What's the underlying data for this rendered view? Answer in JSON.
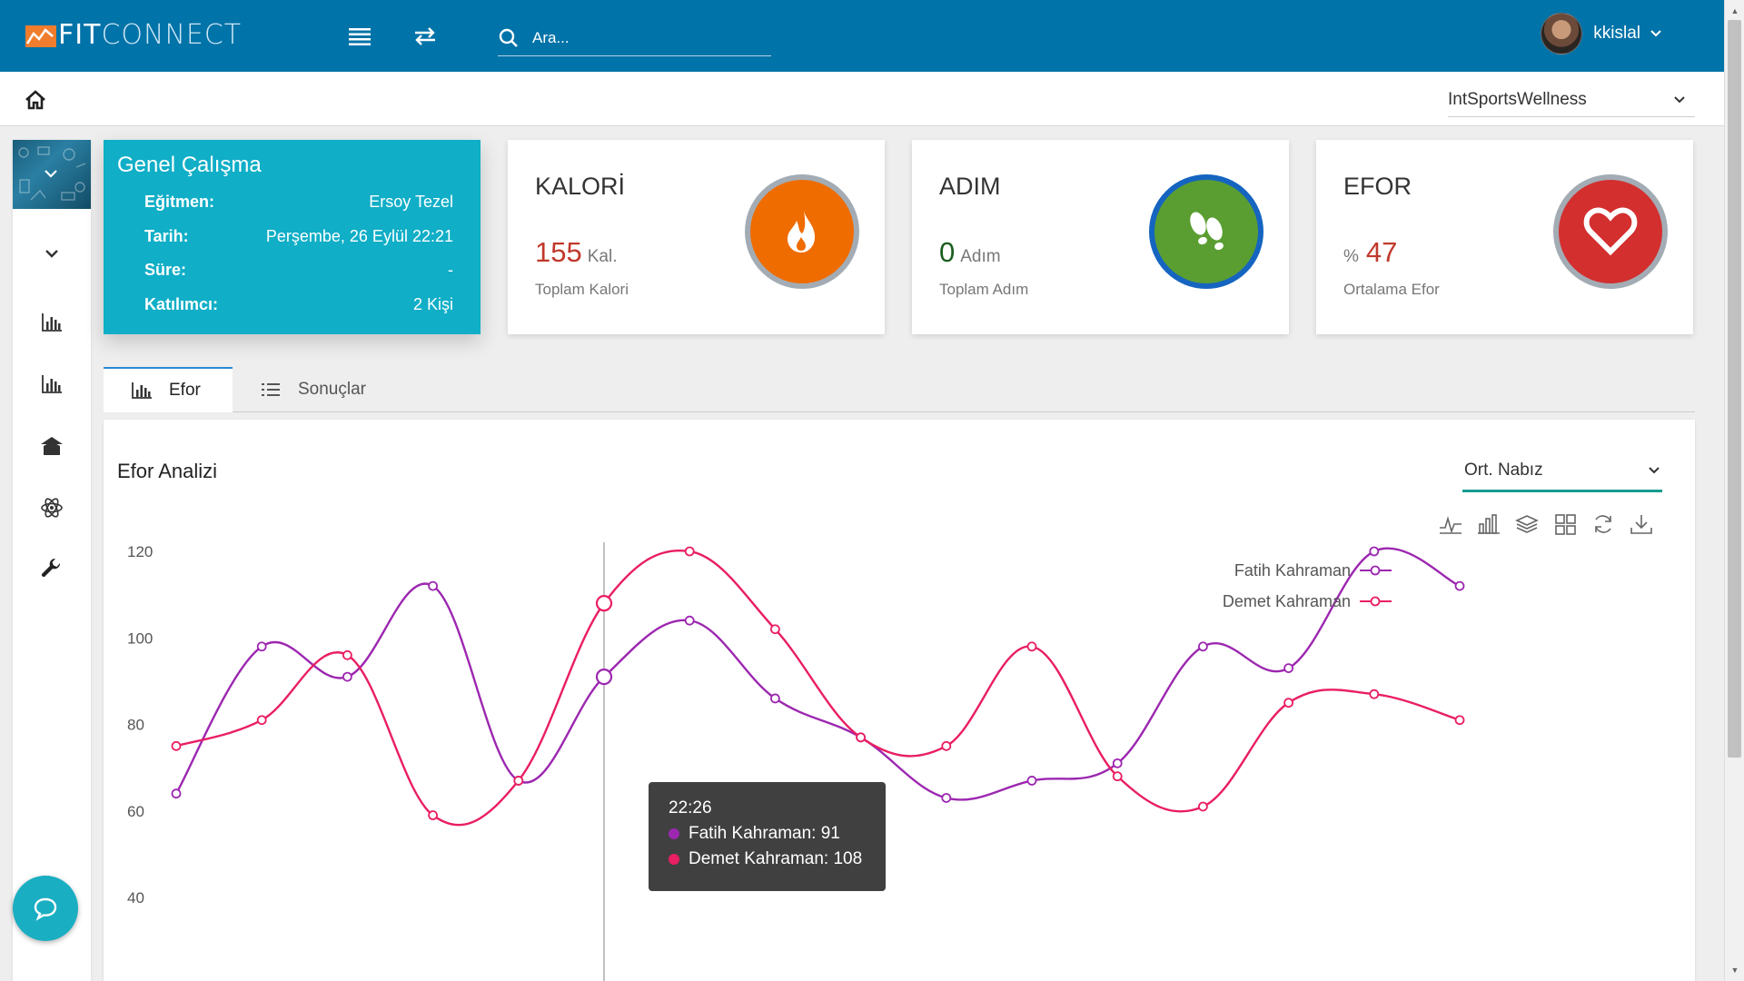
{
  "app": {
    "logo_fit": "FIT",
    "logo_connect": "CONNECT"
  },
  "header": {
    "search_placeholder": "Ara...",
    "username": "kkislal"
  },
  "subbar": {
    "organization": "IntSportsWellness"
  },
  "session": {
    "title": "Genel Çalışma",
    "rows": [
      {
        "key": "Eğitmen:",
        "value": "Ersoy Tezel"
      },
      {
        "key": "Tarih:",
        "value": "Perşembe, 26 Eylül 22:21"
      },
      {
        "key": "Süre:",
        "value": "-"
      },
      {
        "key": "Katılımcı:",
        "value": "2 Kişi"
      }
    ]
  },
  "stats": {
    "calorie": {
      "title": "KALORİ",
      "value": "155",
      "unit": "Kal.",
      "subtitle": "Toplam Kalori",
      "color": "#ef6c00"
    },
    "steps": {
      "title": "ADIM",
      "value": "0",
      "unit": "Adım",
      "subtitle": "Toplam Adım",
      "color": "#5a9e32"
    },
    "effort": {
      "title": "EFOR",
      "prefix": "%",
      "value": "47",
      "subtitle": "Ortalama Efor",
      "color": "#d32f2f"
    }
  },
  "tabs": [
    {
      "label": "Efor",
      "icon": "bar-chart-icon",
      "active": true
    },
    {
      "label": "Sonuçlar",
      "icon": "list-icon",
      "active": false
    }
  ],
  "chart_panel": {
    "title": "Efor Analizi",
    "metric_select": "Ort. Nabız",
    "toolbox": [
      "line-chart-icon",
      "bar-chart-icon",
      "stack-icon",
      "tiled-icon",
      "refresh-icon",
      "download-icon"
    ]
  },
  "chart_data": {
    "type": "line",
    "title": "Efor Analizi",
    "ylim": [
      40,
      120
    ],
    "y_ticks": [
      120,
      100,
      80,
      60,
      40
    ],
    "legend_position": "top-right",
    "series": [
      {
        "name": "Fatih Kahraman",
        "color": "#9c27b0",
        "values": [
          64,
          98,
          91,
          112,
          67,
          91,
          104,
          86,
          77,
          63,
          67,
          71,
          98,
          93,
          120,
          112
        ]
      },
      {
        "name": "Demet Kahraman",
        "color": "#e91e63",
        "values": [
          75,
          81,
          96,
          59,
          67,
          108,
          120,
          102,
          77,
          75,
          98,
          68,
          61,
          85,
          87,
          81
        ]
      }
    ],
    "highlight_index": 5
  },
  "tooltip": {
    "time": "22:26",
    "rows": [
      {
        "text": "Fatih Kahraman: 91",
        "color": "#9c27b0"
      },
      {
        "text": "Demet Kahraman: 108",
        "color": "#e91e63"
      }
    ]
  }
}
